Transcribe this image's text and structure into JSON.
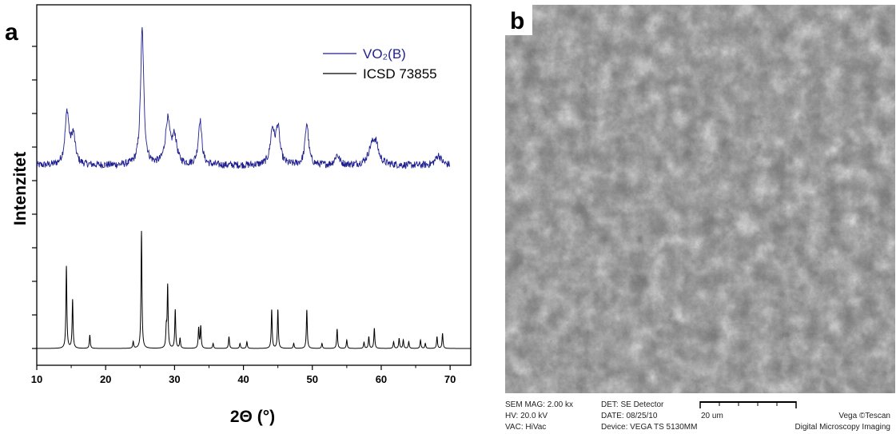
{
  "panels": {
    "a_label": "a",
    "b_label": "b"
  },
  "chart_data": {
    "type": "line",
    "xlabel": "2Θ (°)",
    "ylabel": "Intenzitet",
    "xlim": [
      10,
      73
    ],
    "xticks": [
      10,
      20,
      30,
      40,
      50,
      60,
      70
    ],
    "yticks_count": 10,
    "grid": false,
    "legend_position": "top-right",
    "series": [
      {
        "name": "VO₂(B)",
        "color": "#1f1f8f",
        "baseline": 0.545,
        "x_range": [
          10,
          70
        ],
        "peaks": [
          {
            "x": 14.4,
            "h": 0.155,
            "w": 0.35
          },
          {
            "x": 15.3,
            "h": 0.085,
            "w": 0.35
          },
          {
            "x": 25.3,
            "h": 0.405,
            "w": 0.28
          },
          {
            "x": 29.0,
            "h": 0.13,
            "w": 0.4
          },
          {
            "x": 30.0,
            "h": 0.08,
            "w": 0.4
          },
          {
            "x": 33.7,
            "h": 0.135,
            "w": 0.3
          },
          {
            "x": 44.2,
            "h": 0.1,
            "w": 0.35
          },
          {
            "x": 45.0,
            "h": 0.108,
            "w": 0.35
          },
          {
            "x": 49.2,
            "h": 0.125,
            "w": 0.3
          },
          {
            "x": 53.6,
            "h": 0.03,
            "w": 0.4
          },
          {
            "x": 58.6,
            "h": 0.045,
            "w": 0.6
          },
          {
            "x": 59.2,
            "h": 0.055,
            "w": 0.5
          },
          {
            "x": 68.3,
            "h": 0.03,
            "w": 0.5
          }
        ]
      },
      {
        "name": "ICSD 73855",
        "color": "#000000",
        "baseline": 0.0,
        "x_range": [
          10,
          73
        ],
        "peaks": [
          {
            "x": 14.3,
            "h": 0.245,
            "w": 0.08
          },
          {
            "x": 15.2,
            "h": 0.145,
            "w": 0.08
          },
          {
            "x": 17.7,
            "h": 0.04,
            "w": 0.08
          },
          {
            "x": 24.0,
            "h": 0.02,
            "w": 0.08
          },
          {
            "x": 25.2,
            "h": 0.35,
            "w": 0.08
          },
          {
            "x": 28.8,
            "h": 0.055,
            "w": 0.08
          },
          {
            "x": 29.0,
            "h": 0.185,
            "w": 0.08
          },
          {
            "x": 30.1,
            "h": 0.115,
            "w": 0.08
          },
          {
            "x": 30.8,
            "h": 0.03,
            "w": 0.08
          },
          {
            "x": 33.5,
            "h": 0.06,
            "w": 0.08
          },
          {
            "x": 33.8,
            "h": 0.065,
            "w": 0.08
          },
          {
            "x": 35.6,
            "h": 0.015,
            "w": 0.08
          },
          {
            "x": 37.9,
            "h": 0.035,
            "w": 0.08
          },
          {
            "x": 39.5,
            "h": 0.015,
            "w": 0.08
          },
          {
            "x": 40.5,
            "h": 0.02,
            "w": 0.08
          },
          {
            "x": 44.1,
            "h": 0.115,
            "w": 0.08
          },
          {
            "x": 45.0,
            "h": 0.115,
            "w": 0.08
          },
          {
            "x": 47.3,
            "h": 0.015,
            "w": 0.08
          },
          {
            "x": 49.2,
            "h": 0.115,
            "w": 0.08
          },
          {
            "x": 51.4,
            "h": 0.015,
            "w": 0.08
          },
          {
            "x": 53.6,
            "h": 0.058,
            "w": 0.08
          },
          {
            "x": 55.0,
            "h": 0.025,
            "w": 0.08
          },
          {
            "x": 57.5,
            "h": 0.018,
            "w": 0.08
          },
          {
            "x": 58.2,
            "h": 0.035,
            "w": 0.08
          },
          {
            "x": 59.0,
            "h": 0.06,
            "w": 0.08
          },
          {
            "x": 61.8,
            "h": 0.02,
            "w": 0.08
          },
          {
            "x": 62.6,
            "h": 0.03,
            "w": 0.08
          },
          {
            "x": 63.2,
            "h": 0.025,
            "w": 0.08
          },
          {
            "x": 64.0,
            "h": 0.02,
            "w": 0.08
          },
          {
            "x": 65.7,
            "h": 0.025,
            "w": 0.08
          },
          {
            "x": 66.4,
            "h": 0.015,
            "w": 0.08
          },
          {
            "x": 68.1,
            "h": 0.035,
            "w": 0.08
          },
          {
            "x": 68.9,
            "h": 0.045,
            "w": 0.08
          }
        ]
      }
    ]
  },
  "sem": {
    "mag": "SEM MAG: 2.00 kx",
    "hv": "HV:  20.0 kV",
    "vac": "VAC: HiVac",
    "det": "DET: SE Detector",
    "date": "DATE: 08/25/10",
    "device": "Device: VEGA TS 5130MM",
    "scale": "20 um",
    "brand": "Vega ©Tescan",
    "brand2": "Digital Microscopy Imaging"
  }
}
